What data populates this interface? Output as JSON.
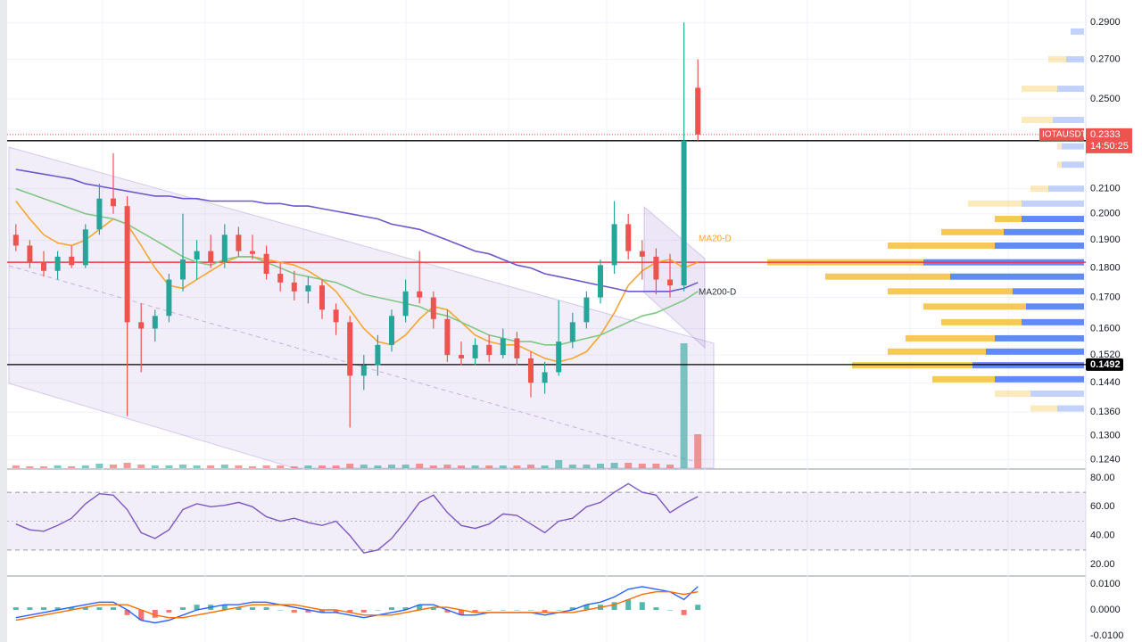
{
  "chart_data": [
    {
      "type": "candlestick",
      "symbol": "IOTAUSDT",
      "countdown": "14:50:25",
      "log": true,
      "grid": true,
      "up_color": "#26a69a",
      "down_color": "#ef5350",
      "ylim": [
        0.122,
        0.303
      ],
      "yticks": [
        {
          "value": 0.29,
          "label": "0.2900"
        },
        {
          "value": 0.27,
          "label": "0.2700"
        },
        {
          "value": 0.25,
          "label": "0.2500"
        },
        {
          "value": 0.21,
          "label": "0.2100"
        },
        {
          "value": 0.2,
          "label": "0.2000"
        },
        {
          "value": 0.19,
          "label": "0.1900"
        },
        {
          "value": 0.18,
          "label": "0.1800"
        },
        {
          "value": 0.17,
          "label": "0.1700"
        },
        {
          "value": 0.16,
          "label": "0.1600"
        },
        {
          "value": 0.152,
          "label": "0.1520"
        },
        {
          "value": 0.144,
          "label": "0.1440"
        },
        {
          "value": 0.136,
          "label": "0.1360"
        },
        {
          "value": 0.13,
          "label": "0.1300"
        },
        {
          "value": 0.124,
          "label": "0.1240"
        }
      ],
      "open": [
        0.192,
        0.188,
        0.182,
        0.179,
        0.184,
        0.181,
        0.194,
        0.206,
        0.203,
        0.162,
        0.16,
        0.164,
        0.176,
        0.183,
        0.186,
        0.182,
        0.192,
        0.186,
        0.185,
        0.178,
        0.175,
        0.172,
        0.174,
        0.166,
        0.162,
        0.146,
        0.149,
        0.155,
        0.164,
        0.172,
        0.17,
        0.163,
        0.152,
        0.151,
        0.155,
        0.152,
        0.157,
        0.151,
        0.144,
        0.147,
        0.156,
        0.162,
        0.17,
        0.181,
        0.196,
        0.186,
        0.184,
        0.176,
        0.174,
        0.2555
      ],
      "high": [
        0.196,
        0.19,
        0.186,
        0.186,
        0.188,
        0.196,
        0.212,
        0.225,
        0.207,
        0.168,
        0.166,
        0.178,
        0.2,
        0.19,
        0.192,
        0.196,
        0.195,
        0.192,
        0.188,
        0.182,
        0.179,
        0.177,
        0.176,
        0.168,
        0.164,
        0.152,
        0.158,
        0.166,
        0.176,
        0.186,
        0.172,
        0.166,
        0.156,
        0.157,
        0.158,
        0.16,
        0.159,
        0.153,
        0.15,
        0.169,
        0.165,
        0.172,
        0.183,
        0.205,
        0.2,
        0.19,
        0.187,
        0.185,
        0.29,
        0.27
      ],
      "low": [
        0.186,
        0.18,
        0.177,
        0.176,
        0.18,
        0.18,
        0.192,
        0.2,
        0.135,
        0.147,
        0.156,
        0.162,
        0.172,
        0.176,
        0.18,
        0.18,
        0.184,
        0.183,
        0.176,
        0.172,
        0.169,
        0.168,
        0.163,
        0.158,
        0.132,
        0.142,
        0.146,
        0.153,
        0.162,
        0.168,
        0.16,
        0.15,
        0.149,
        0.149,
        0.15,
        0.151,
        0.149,
        0.14,
        0.141,
        0.146,
        0.154,
        0.16,
        0.168,
        0.178,
        0.183,
        0.176,
        0.171,
        0.17,
        0.172,
        0.2305
      ],
      "close": [
        0.188,
        0.182,
        0.179,
        0.184,
        0.181,
        0.194,
        0.206,
        0.203,
        0.162,
        0.16,
        0.164,
        0.176,
        0.183,
        0.186,
        0.182,
        0.192,
        0.186,
        0.185,
        0.178,
        0.175,
        0.172,
        0.174,
        0.166,
        0.162,
        0.146,
        0.149,
        0.155,
        0.164,
        0.172,
        0.17,
        0.163,
        0.152,
        0.151,
        0.155,
        0.152,
        0.157,
        0.151,
        0.144,
        0.147,
        0.156,
        0.162,
        0.17,
        0.181,
        0.196,
        0.186,
        0.184,
        0.176,
        0.174,
        0.2305,
        0.2333
      ],
      "volume": [
        3,
        2,
        2,
        3,
        2,
        3,
        5,
        4,
        6,
        4,
        3,
        3,
        4,
        3,
        3,
        4,
        3,
        2,
        3,
        3,
        2,
        3,
        3,
        3,
        5,
        4,
        3,
        4,
        4,
        5,
        3,
        4,
        3,
        3,
        3,
        3,
        3,
        4,
        3,
        9,
        4,
        4,
        5,
        6,
        6,
        5,
        5,
        4,
        140,
        38
      ],
      "moving_averages": [
        {
          "name": "MA20-D",
          "color": "#f7a531",
          "values": [
            0.205,
            0.198,
            0.192,
            0.189,
            0.188,
            0.19,
            0.194,
            0.198,
            0.196,
            0.188,
            0.18,
            0.174,
            0.173,
            0.176,
            0.179,
            0.182,
            0.184,
            0.184,
            0.183,
            0.182,
            0.181,
            0.179,
            0.176,
            0.172,
            0.166,
            0.16,
            0.156,
            0.155,
            0.158,
            0.163,
            0.167,
            0.166,
            0.162,
            0.158,
            0.156,
            0.155,
            0.155,
            0.153,
            0.151,
            0.15,
            0.151,
            0.153,
            0.158,
            0.165,
            0.174,
            0.179,
            0.182,
            0.183,
            0.18,
            0.182
          ]
        },
        {
          "color": "#81c784",
          "values": [
            0.21,
            0.208,
            0.206,
            0.204,
            0.202,
            0.2,
            0.199,
            0.198,
            0.196,
            0.193,
            0.19,
            0.187,
            0.184,
            0.182,
            0.181,
            0.183,
            0.184,
            0.184,
            0.182,
            0.18,
            0.178,
            0.177,
            0.176,
            0.175,
            0.173,
            0.171,
            0.17,
            0.169,
            0.168,
            0.167,
            0.165,
            0.164,
            0.162,
            0.16,
            0.158,
            0.157,
            0.156,
            0.156,
            0.155,
            0.155,
            0.156,
            0.157,
            0.158,
            0.16,
            0.162,
            0.164,
            0.165,
            0.167,
            0.169,
            0.172
          ]
        },
        {
          "name": "MA200-D",
          "color": "#6a5acd",
          "values": [
            0.218,
            0.217,
            0.216,
            0.215,
            0.214,
            0.212,
            0.211,
            0.21,
            0.209,
            0.208,
            0.207,
            0.207,
            0.206,
            0.206,
            0.205,
            0.205,
            0.205,
            0.205,
            0.204,
            0.204,
            0.203,
            0.203,
            0.202,
            0.201,
            0.2,
            0.199,
            0.198,
            0.196,
            0.195,
            0.194,
            0.192,
            0.19,
            0.188,
            0.186,
            0.185,
            0.183,
            0.181,
            0.18,
            0.178,
            0.177,
            0.176,
            0.175,
            0.174,
            0.173,
            0.172,
            0.172,
            0.172,
            0.172,
            0.173,
            0.175
          ]
        }
      ],
      "last_price": 0.2333,
      "levels": [
        {
          "value": 0.2305,
          "color": "#000000"
        },
        {
          "value": 0.1492,
          "color": "#000000"
        },
        {
          "value": 0.182,
          "color": "#f23645"
        }
      ],
      "volume_profile": {
        "up_color": "#f5c342",
        "down_color": "#4f7ef5",
        "value_area": [
          0.144,
          0.2
        ],
        "prices": [
          0.285,
          0.27,
          0.255,
          0.24,
          0.228,
          0.22,
          0.21,
          0.204,
          0.198,
          0.193,
          0.188,
          0.182,
          0.177,
          0.172,
          0.167,
          0.162,
          0.157,
          0.153,
          0.149,
          0.145,
          0.141,
          0.137
        ],
        "down": [
          15,
          20,
          30,
          35,
          25,
          25,
          40,
          70,
          70,
          90,
          100,
          180,
          150,
          80,
          65,
          70,
          100,
          110,
          125,
          100,
          60,
          30
        ],
        "total": [
          15,
          40,
          70,
          70,
          30,
          30,
          60,
          130,
          100,
          160,
          220,
          355,
          290,
          220,
          180,
          160,
          200,
          220,
          260,
          170,
          100,
          60
        ]
      }
    },
    {
      "type": "line",
      "color": "#7e57c2",
      "ylim": [
        12.6,
        85.5
      ],
      "yticks": [
        {
          "value": 80,
          "label": "80.00"
        },
        {
          "value": 60,
          "label": "60.00"
        },
        {
          "value": 40,
          "label": "40.00"
        },
        {
          "value": 20,
          "label": "20.00"
        }
      ],
      "bands": [
        30,
        70
      ],
      "midline": 50,
      "values": [
        48,
        44,
        43,
        47,
        52,
        62,
        69,
        68,
        58,
        42,
        38,
        44,
        58,
        62,
        60,
        61,
        63,
        60,
        53,
        50,
        52,
        49,
        47,
        50,
        40,
        28,
        30,
        38,
        50,
        63,
        68,
        56,
        47,
        45,
        48,
        55,
        54,
        48,
        42,
        50,
        52,
        60,
        63,
        70,
        76,
        70,
        68,
        56,
        62,
        67
      ]
    },
    {
      "type": "macd",
      "ylim": [
        -0.01241,
        0.01276
      ],
      "yticks": [
        {
          "value": 0.01,
          "label": "0.0100"
        },
        {
          "value": 0,
          "label": "0.0000"
        },
        {
          "value": -0.01,
          "label": "-0.0100"
        }
      ],
      "series": [
        {
          "color": "#2962ff",
          "values": [
            -0.003,
            -0.002,
            -0.001,
            0,
            0.001,
            0.002,
            0.003,
            0.003,
            0,
            -0.004,
            -0.005,
            -0.004,
            -0.002,
            0,
            0.001,
            0.002,
            0.002,
            0.003,
            0.003,
            0.002,
            0.001,
            0,
            -0.001,
            -0.001,
            -0.002,
            -0.003,
            -0.002,
            -0.001,
            0,
            0.002,
            0.002,
            0,
            -0.002,
            -0.002,
            -0.001,
            -0.001,
            -0.001,
            -0.001,
            -0.002,
            -0.001,
            0,
            0.002,
            0.003,
            0.005,
            0.008,
            0.009,
            0.008,
            0.007,
            0.004,
            0.009
          ]
        },
        {
          "color": "#ff6d00",
          "values": [
            -0.004,
            -0.003,
            -0.002,
            -0.001,
            0,
            0.001,
            0.002,
            0.002,
            0.002,
            0,
            -0.002,
            -0.003,
            -0.003,
            -0.002,
            -0.001,
            0,
            0.001,
            0.002,
            0.002,
            0.002,
            0.002,
            0.001,
            0,
            0,
            -0.001,
            -0.002,
            -0.002,
            -0.002,
            -0.001,
            0,
            0.001,
            0.001,
            0,
            -0.001,
            -0.001,
            -0.001,
            -0.001,
            -0.001,
            -0.001,
            -0.001,
            -0.001,
            0,
            0.001,
            0.002,
            0.004,
            0.006,
            0.007,
            0.007,
            0.006,
            0.007
          ]
        }
      ],
      "histogram": [
        0.001,
        0.001,
        0.001,
        0.001,
        0.001,
        0.001,
        0.001,
        0.001,
        -0.002,
        -0.004,
        -0.003,
        -0.001,
        0.001,
        0.002,
        0.002,
        0.002,
        0.001,
        0.001,
        0.001,
        0,
        -0.001,
        -0.001,
        -0.001,
        -0.001,
        -0.001,
        -0.001,
        0,
        0.001,
        0.001,
        0.002,
        0.001,
        -0.001,
        -0.002,
        -0.001,
        0,
        0,
        0,
        0,
        -0.001,
        0,
        0.001,
        0.002,
        0.002,
        0.003,
        0.004,
        0.003,
        0.001,
        0,
        -0.002,
        0.002
      ]
    }
  ]
}
